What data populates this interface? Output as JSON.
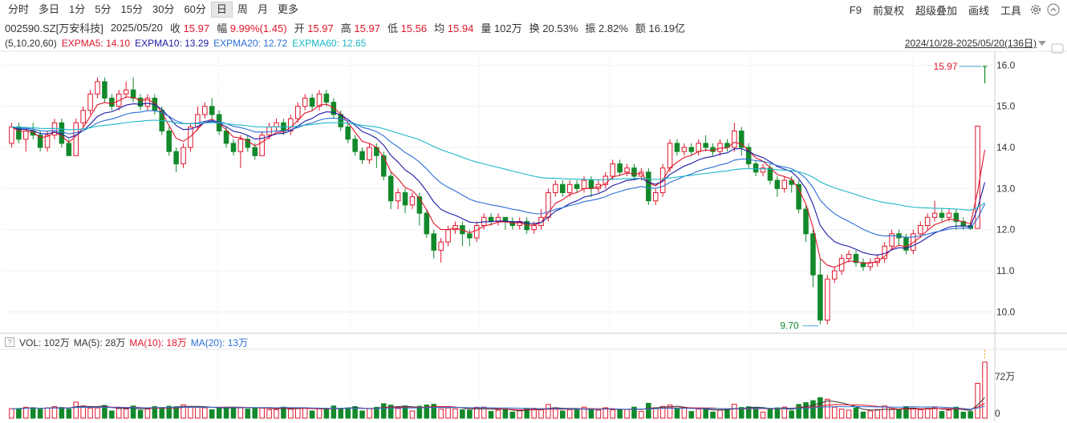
{
  "toolbar": {
    "periods": [
      "分时",
      "多日",
      "1分",
      "5分",
      "15分",
      "30分",
      "60分",
      "日",
      "周",
      "月",
      "更多"
    ],
    "active_period": "日",
    "tools": [
      "F9",
      "前复权",
      "超级叠加",
      "画线",
      "工具"
    ],
    "icons": [
      "settings-icon",
      "collapse-icon"
    ]
  },
  "info": {
    "code": "002590.SZ[万安科技]",
    "date": "2025/05/20",
    "close_label": "收",
    "close": "15.97",
    "change_label": "幅",
    "change": "9.99%(1.45)",
    "open_label": "开",
    "open": "15.97",
    "high_label": "高",
    "high": "15.97",
    "low_label": "低",
    "low": "15.56",
    "avg_label": "均",
    "avg": "15.94",
    "volume_label": "量",
    "volume": "102万",
    "turnover_label": "换",
    "turnover": "20.53%",
    "amplitude_label": "振",
    "amplitude": "2.82%",
    "amount_label": "额",
    "amount": "16.19亿"
  },
  "ma": {
    "params": "(5,10,20,60)",
    "ma5": "EXPMA5: 14.10",
    "ma10": "EXPMA10: 13.29",
    "ma20": "EXPMA20: 12.72",
    "ma60": "EXPMA60: 12.65",
    "colors": {
      "ma5": "#e0162b",
      "ma10": "#1a1aa6",
      "ma20": "#2a6fd6",
      "ma60": "#19b8c8"
    }
  },
  "date_range": "2024/10/28-2025/05/20(136日)",
  "price_axis": [
    "16.0",
    "15.0",
    "14.0",
    "13.0",
    "12.0",
    "11.0",
    "10.0"
  ],
  "annotations": {
    "high": "15.97",
    "low": "9.70"
  },
  "volume": {
    "label": "VOL: 102万",
    "ma5": "MA(5): 28万",
    "ma10": "MA(10): 18万",
    "ma20": "MA(20): 13万",
    "axis": [
      "72万",
      "0"
    ]
  },
  "chart_data": {
    "type": "candlestick",
    "title": "002590.SZ[万安科技] 日K",
    "range": "2024/10/28-2025/05/20",
    "ylim": [
      9.5,
      16.3
    ],
    "candles": [
      [
        14.1,
        14.5,
        14.6,
        14.0
      ],
      [
        14.5,
        14.2,
        14.6,
        14.1
      ],
      [
        14.2,
        14.4,
        14.5,
        13.9
      ],
      [
        14.4,
        14.3,
        14.6,
        14.2
      ],
      [
        14.3,
        14.0,
        14.4,
        13.9
      ],
      [
        14.0,
        14.3,
        14.4,
        13.9
      ],
      [
        14.3,
        14.6,
        14.7,
        14.2
      ],
      [
        14.6,
        14.1,
        14.7,
        14.0
      ],
      [
        14.1,
        13.8,
        14.2,
        13.8
      ],
      [
        13.8,
        14.6,
        14.7,
        13.8
      ],
      [
        14.6,
        14.9,
        15.0,
        14.5
      ],
      [
        14.9,
        15.3,
        15.4,
        14.8
      ],
      [
        15.3,
        15.6,
        15.7,
        15.2
      ],
      [
        15.6,
        15.2,
        15.7,
        15.1
      ],
      [
        15.2,
        15.0,
        15.3,
        14.9
      ],
      [
        15.0,
        15.3,
        15.4,
        14.9
      ],
      [
        15.3,
        15.4,
        15.6,
        15.2
      ],
      [
        15.4,
        15.2,
        15.7,
        15.1
      ],
      [
        15.2,
        15.0,
        15.3,
        14.9
      ],
      [
        15.0,
        15.2,
        15.3,
        14.9
      ],
      [
        15.2,
        14.9,
        15.3,
        14.8
      ],
      [
        14.9,
        14.4,
        15.0,
        14.3
      ],
      [
        14.4,
        13.9,
        14.5,
        13.8
      ],
      [
        13.9,
        13.6,
        14.0,
        13.4
      ],
      [
        13.6,
        14.0,
        14.1,
        13.5
      ],
      [
        14.0,
        14.5,
        14.6,
        13.9
      ],
      [
        14.5,
        14.8,
        15.0,
        14.4
      ],
      [
        14.8,
        15.0,
        15.1,
        14.7
      ],
      [
        15.0,
        14.8,
        15.2,
        14.6
      ],
      [
        14.8,
        14.4,
        14.9,
        14.3
      ],
      [
        14.4,
        14.1,
        14.5,
        14.0
      ],
      [
        14.1,
        13.9,
        14.2,
        13.8
      ],
      [
        13.9,
        14.2,
        14.3,
        13.5
      ],
      [
        14.2,
        14.0,
        14.3,
        13.9
      ],
      [
        14.0,
        13.8,
        14.1,
        13.7
      ],
      [
        13.8,
        14.3,
        14.4,
        13.8
      ],
      [
        14.3,
        14.5,
        14.6,
        14.2
      ],
      [
        14.5,
        14.6,
        14.7,
        14.4
      ],
      [
        14.6,
        14.4,
        14.7,
        14.3
      ],
      [
        14.4,
        14.7,
        14.8,
        14.3
      ],
      [
        14.7,
        15.0,
        15.1,
        14.6
      ],
      [
        15.0,
        15.2,
        15.3,
        14.9
      ],
      [
        15.2,
        15.0,
        15.3,
        14.9
      ],
      [
        15.0,
        15.3,
        15.4,
        14.9
      ],
      [
        15.3,
        15.1,
        15.4,
        15.0
      ],
      [
        15.1,
        14.8,
        15.2,
        14.7
      ],
      [
        14.8,
        14.5,
        14.9,
        14.4
      ],
      [
        14.5,
        14.2,
        14.6,
        14.1
      ],
      [
        14.2,
        13.9,
        14.3,
        13.8
      ],
      [
        13.9,
        13.7,
        14.0,
        13.6
      ],
      [
        13.7,
        14.0,
        14.1,
        13.6
      ],
      [
        14.0,
        13.8,
        14.1,
        13.5
      ],
      [
        13.8,
        13.3,
        13.9,
        13.2
      ],
      [
        13.3,
        12.7,
        13.4,
        12.5
      ],
      [
        12.7,
        12.9,
        13.0,
        12.5
      ],
      [
        12.9,
        12.6,
        13.0,
        12.4
      ],
      [
        12.6,
        12.8,
        12.9,
        12.5
      ],
      [
        12.8,
        12.4,
        12.9,
        12.1
      ],
      [
        12.4,
        11.9,
        12.5,
        11.8
      ],
      [
        11.9,
        11.5,
        12.0,
        11.3
      ],
      [
        11.5,
        11.7,
        11.8,
        11.2
      ],
      [
        11.7,
        12.0,
        12.1,
        11.6
      ],
      [
        12.0,
        12.1,
        12.2,
        11.9
      ],
      [
        12.1,
        11.9,
        12.2,
        11.6
      ],
      [
        11.9,
        11.8,
        12.0,
        11.6
      ],
      [
        11.8,
        12.1,
        12.2,
        11.7
      ],
      [
        12.1,
        12.3,
        12.4,
        12.0
      ],
      [
        12.3,
        12.2,
        12.4,
        12.1
      ],
      [
        12.2,
        12.3,
        12.4,
        12.1
      ],
      [
        12.3,
        12.2,
        12.3,
        12.0
      ],
      [
        12.2,
        12.1,
        12.3,
        12.0
      ],
      [
        12.1,
        12.2,
        12.3,
        12.0
      ],
      [
        12.2,
        12.0,
        12.3,
        11.9
      ],
      [
        12.0,
        12.1,
        12.2,
        11.9
      ],
      [
        12.1,
        12.3,
        12.5,
        12.0
      ],
      [
        12.3,
        12.9,
        13.0,
        12.2
      ],
      [
        12.9,
        13.1,
        13.2,
        12.8
      ],
      [
        13.1,
        12.9,
        13.2,
        12.8
      ],
      [
        12.9,
        13.1,
        13.2,
        12.8
      ],
      [
        13.1,
        13.0,
        13.2,
        12.9
      ],
      [
        13.0,
        13.2,
        13.3,
        12.9
      ],
      [
        13.2,
        13.0,
        13.3,
        12.8
      ],
      [
        13.0,
        13.1,
        13.2,
        12.9
      ],
      [
        13.1,
        13.3,
        13.4,
        13.0
      ],
      [
        13.3,
        13.6,
        13.7,
        13.2
      ],
      [
        13.6,
        13.4,
        13.7,
        13.3
      ],
      [
        13.4,
        13.5,
        13.6,
        13.3
      ],
      [
        13.5,
        13.3,
        13.6,
        13.2
      ],
      [
        13.3,
        13.4,
        13.5,
        13.2
      ],
      [
        13.4,
        12.7,
        13.5,
        12.6
      ],
      [
        12.7,
        12.9,
        13.0,
        12.6
      ],
      [
        12.9,
        13.5,
        13.6,
        12.8
      ],
      [
        13.5,
        14.1,
        14.2,
        13.4
      ],
      [
        14.1,
        13.9,
        14.2,
        13.8
      ],
      [
        13.9,
        14.0,
        14.1,
        13.8
      ],
      [
        14.0,
        13.9,
        14.1,
        13.8
      ],
      [
        13.9,
        14.1,
        14.2,
        13.8
      ],
      [
        14.1,
        14.0,
        14.3,
        13.9
      ],
      [
        14.0,
        13.9,
        14.1,
        13.8
      ],
      [
        13.9,
        14.1,
        14.2,
        13.8
      ],
      [
        14.1,
        14.0,
        14.2,
        13.9
      ],
      [
        14.0,
        14.4,
        14.6,
        13.9
      ],
      [
        14.4,
        14.0,
        14.5,
        13.8
      ],
      [
        14.0,
        13.6,
        14.1,
        13.5
      ],
      [
        13.6,
        13.4,
        13.7,
        13.3
      ],
      [
        13.4,
        13.5,
        13.6,
        13.3
      ],
      [
        13.5,
        13.2,
        13.6,
        13.1
      ],
      [
        13.2,
        13.0,
        13.3,
        12.8
      ],
      [
        13.0,
        13.2,
        13.3,
        12.9
      ],
      [
        13.2,
        13.1,
        13.3,
        12.9
      ],
      [
        13.1,
        12.5,
        13.2,
        12.4
      ],
      [
        12.5,
        11.9,
        12.6,
        11.7
      ],
      [
        11.9,
        10.9,
        12.0,
        10.6
      ],
      [
        10.9,
        9.8,
        11.3,
        9.7
      ],
      [
        9.8,
        10.8,
        10.9,
        9.7
      ],
      [
        10.8,
        11.0,
        11.1,
        10.7
      ],
      [
        11.0,
        11.3,
        11.4,
        10.9
      ],
      [
        11.3,
        11.4,
        11.5,
        11.2
      ],
      [
        11.4,
        11.2,
        11.5,
        11.1
      ],
      [
        11.2,
        11.1,
        11.3,
        11.0
      ],
      [
        11.1,
        11.2,
        11.3,
        11.0
      ],
      [
        11.2,
        11.3,
        11.4,
        11.1
      ],
      [
        11.3,
        11.6,
        11.7,
        11.2
      ],
      [
        11.6,
        11.9,
        12.0,
        11.5
      ],
      [
        11.9,
        11.8,
        12.0,
        11.6
      ],
      [
        11.8,
        11.5,
        11.9,
        11.4
      ],
      [
        11.5,
        11.9,
        12.0,
        11.4
      ],
      [
        11.9,
        12.1,
        12.2,
        11.8
      ],
      [
        12.1,
        12.3,
        12.4,
        12.0
      ],
      [
        12.3,
        12.4,
        12.7,
        12.2
      ],
      [
        12.4,
        12.3,
        12.5,
        12.2
      ],
      [
        12.3,
        12.4,
        12.5,
        12.2
      ],
      [
        12.4,
        12.2,
        12.5,
        12.0
      ],
      [
        12.2,
        12.1,
        12.3,
        12.0
      ],
      [
        12.1,
        12.03,
        12.2,
        12.0
      ],
      [
        12.03,
        14.52,
        14.52,
        12.03
      ]
    ],
    "final_candle": {
      "open": 15.97,
      "close": 15.97,
      "high": 15.97,
      "low": 15.56
    },
    "volume_unit": "万"
  }
}
